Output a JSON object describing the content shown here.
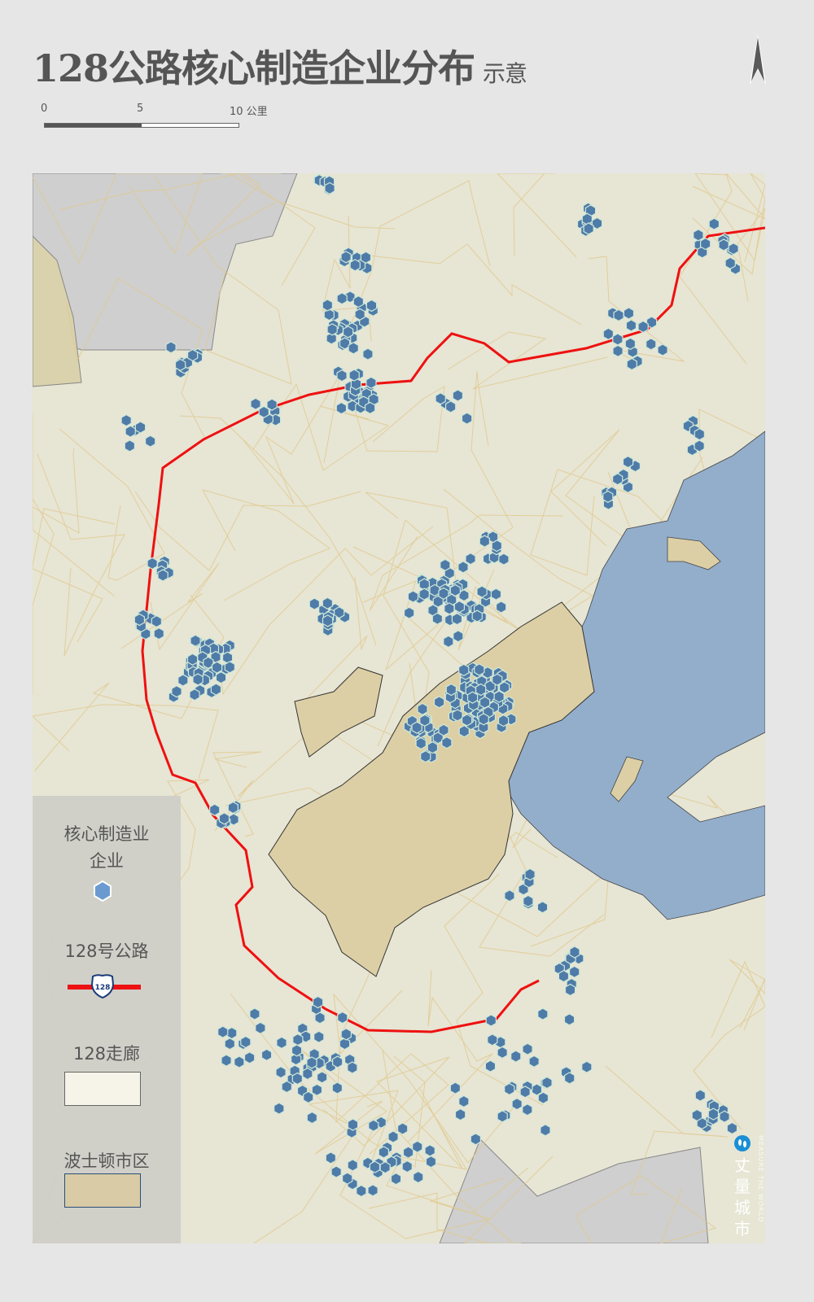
{
  "header": {
    "title": "128公路核心制造企业分布",
    "subtitle": "示意"
  },
  "north_arrow": {
    "icon": "north-arrow-icon"
  },
  "scale_bar": {
    "ticks": [
      "0",
      "5",
      "10 公里"
    ]
  },
  "legend": {
    "firms_label": "核心制造业企业",
    "firms_line1": "核心制造业",
    "firms_line2": "企业",
    "highway_label": "128号公路",
    "highway_shield": "128",
    "corridor_label": "128走廊",
    "boston_label": "波士顿市区"
  },
  "colors": {
    "firm": "#4f7ba8",
    "highway": "#ee1111",
    "corridor": "#f6f4e8",
    "boston": "#dccfa5",
    "water": "#93aecb",
    "land": "#e7e5d4",
    "outside": "#cfcfcf"
  },
  "watermark": {
    "cn": "丈量城市",
    "en": "MEASURE THE WORLD",
    "logo": "footprints-icon"
  }
}
